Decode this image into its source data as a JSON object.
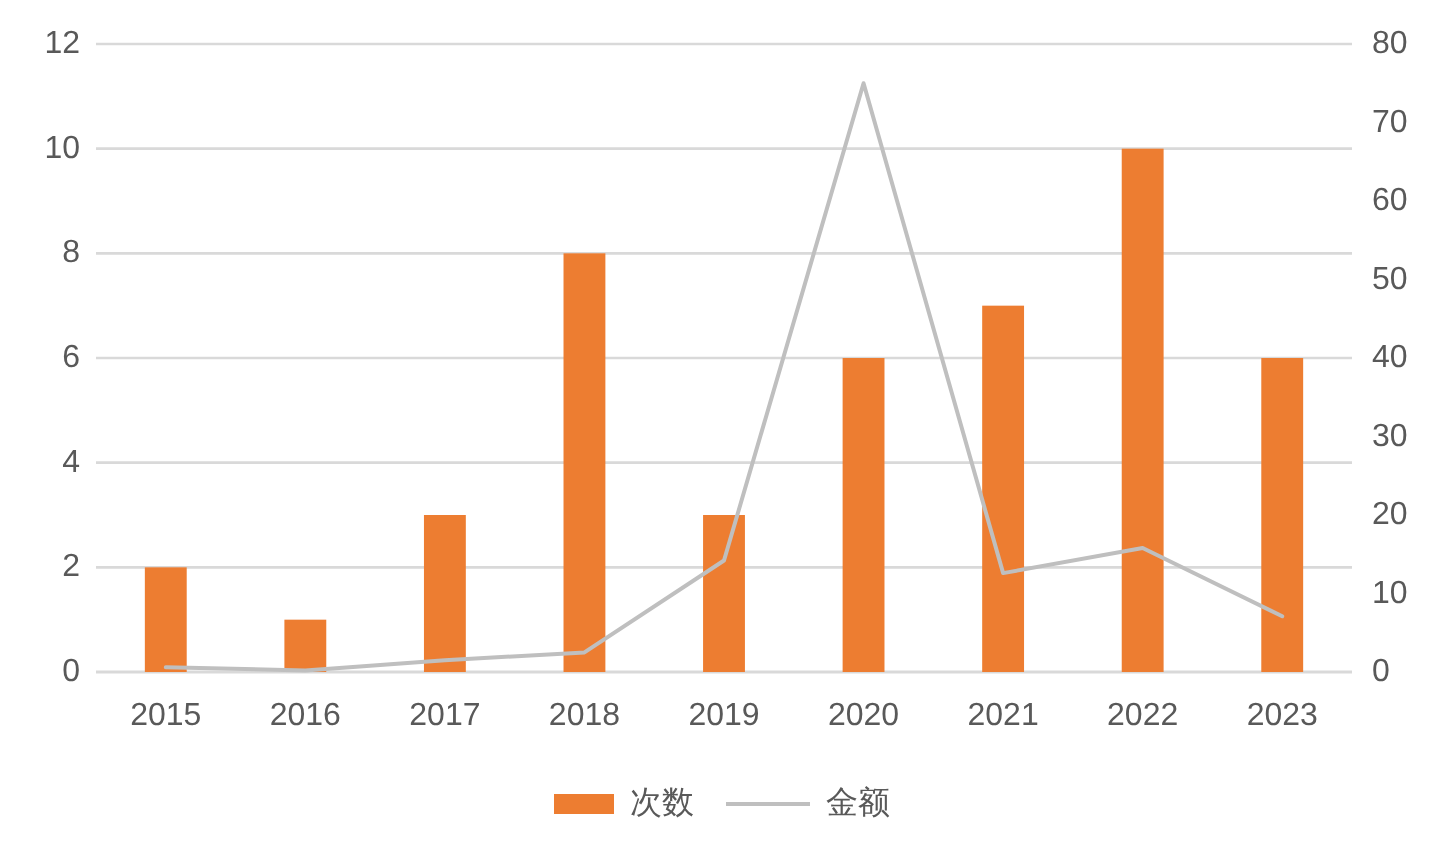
{
  "chart_data": {
    "type": "bar",
    "categories": [
      "2015",
      "2016",
      "2017",
      "2018",
      "2019",
      "2020",
      "2021",
      "2022",
      "2023"
    ],
    "series": [
      {
        "name": "次数",
        "color": "#ed7d31",
        "values": [
          2,
          1,
          3,
          8,
          3,
          6,
          7,
          10,
          6
        ]
      },
      {
        "name": "金额",
        "type": "line",
        "axis": "y2",
        "color": "#bfbfbf",
        "values": [
          0.6,
          0.2,
          1.5,
          2.5,
          14.2,
          75,
          12.6,
          15.8,
          7.1
        ]
      }
    ],
    "ylim": [
      0,
      12
    ],
    "yticks": [
      0,
      2,
      4,
      6,
      8,
      10,
      12
    ],
    "y2lim": [
      0,
      80
    ],
    "y2ticks": [
      0,
      10,
      20,
      30,
      40,
      50,
      60,
      70,
      80
    ],
    "grid": "y",
    "legend": "bottom"
  }
}
